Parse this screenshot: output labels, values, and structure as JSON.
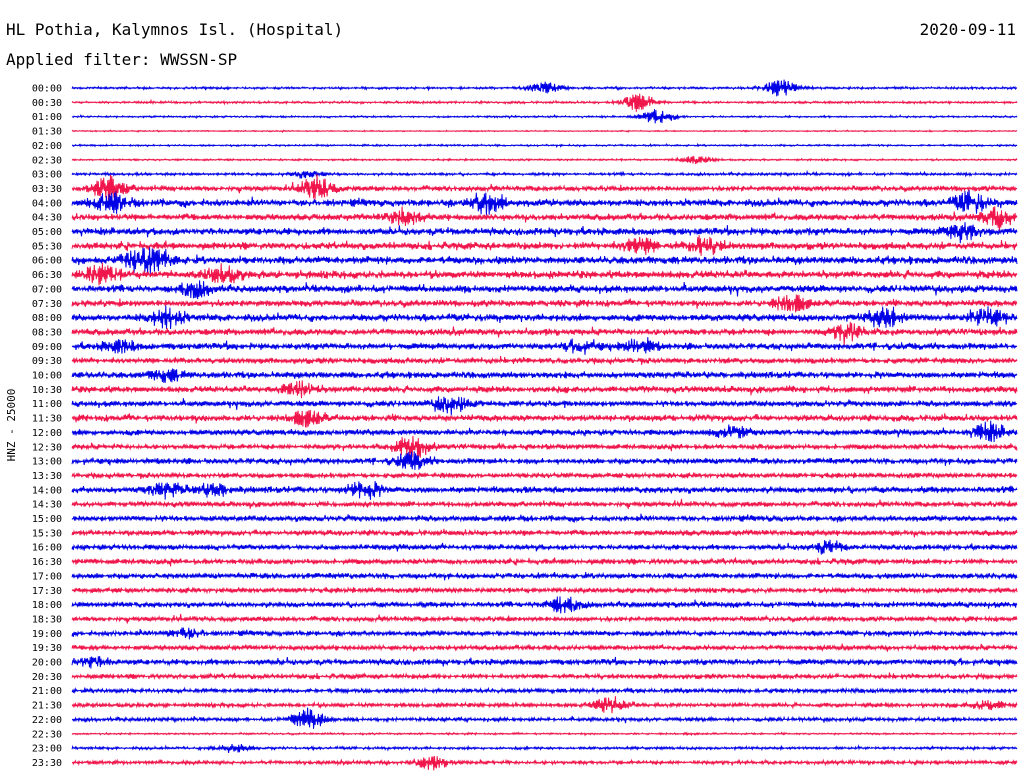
{
  "header": {
    "station": "HL Pothia, Kalymnos Isl. (Hospital)",
    "date": "2020-09-11",
    "filter": "Applied filter: WWSSN-SP"
  },
  "chart_data": {
    "type": "line",
    "title": "HL Pothia, Kalymnos Isl. (Hospital)",
    "subtitle": "Applied filter: WWSSN-SP",
    "ylabel": "HNZ - 25000",
    "series_colors": [
      "#0000e6",
      "#f0154a"
    ],
    "rows": [
      {
        "label": "00:00",
        "color": "#0000e6",
        "amplitude": 0.15,
        "events": [
          {
            "t": 0.5,
            "amp": 0.6
          },
          {
            "t": 0.75,
            "amp": 0.9
          }
        ]
      },
      {
        "label": "00:30",
        "color": "#f0154a",
        "amplitude": 0.15,
        "events": [
          {
            "t": 0.6,
            "amp": 1.0
          }
        ]
      },
      {
        "label": "01:00",
        "color": "#0000e6",
        "amplitude": 0.12,
        "events": [
          {
            "t": 0.62,
            "amp": 0.8
          }
        ]
      },
      {
        "label": "01:30",
        "color": "#f0154a",
        "amplitude": 0.08,
        "events": []
      },
      {
        "label": "02:00",
        "color": "#0000e6",
        "amplitude": 0.12,
        "events": []
      },
      {
        "label": "02:30",
        "color": "#f0154a",
        "amplitude": 0.12,
        "events": [
          {
            "t": 0.66,
            "amp": 0.4
          }
        ]
      },
      {
        "label": "03:00",
        "color": "#0000e6",
        "amplitude": 0.18,
        "events": [
          {
            "t": 0.25,
            "amp": 0.4
          }
        ]
      },
      {
        "label": "03:30",
        "color": "#f0154a",
        "amplitude": 0.35,
        "events": [
          {
            "t": 0.04,
            "amp": 1.3
          },
          {
            "t": 0.26,
            "amp": 1.3
          }
        ]
      },
      {
        "label": "04:00",
        "color": "#0000e6",
        "amplitude": 0.5,
        "events": [
          {
            "t": 0.04,
            "amp": 1.0
          },
          {
            "t": 0.44,
            "amp": 1.2
          },
          {
            "t": 0.95,
            "amp": 1.0
          }
        ]
      },
      {
        "label": "04:30",
        "color": "#f0154a",
        "amplitude": 0.45,
        "events": [
          {
            "t": 0.35,
            "amp": 0.8
          },
          {
            "t": 0.98,
            "amp": 1.0
          }
        ]
      },
      {
        "label": "05:00",
        "color": "#0000e6",
        "amplitude": 0.5,
        "events": [
          {
            "t": 0.94,
            "amp": 0.9
          }
        ]
      },
      {
        "label": "05:30",
        "color": "#f0154a",
        "amplitude": 0.5,
        "events": [
          {
            "t": 0.6,
            "amp": 0.9
          },
          {
            "t": 0.67,
            "amp": 0.9
          }
        ]
      },
      {
        "label": "06:00",
        "color": "#0000e6",
        "amplitude": 0.55,
        "events": [
          {
            "t": 0.07,
            "amp": 0.9
          },
          {
            "t": 0.09,
            "amp": 0.9
          }
        ]
      },
      {
        "label": "06:30",
        "color": "#f0154a",
        "amplitude": 0.55,
        "events": [
          {
            "t": 0.03,
            "amp": 1.0
          },
          {
            "t": 0.16,
            "amp": 0.8
          }
        ]
      },
      {
        "label": "07:00",
        "color": "#0000e6",
        "amplitude": 0.5,
        "events": [
          {
            "t": 0.13,
            "amp": 0.8
          }
        ]
      },
      {
        "label": "07:30",
        "color": "#f0154a",
        "amplitude": 0.45,
        "events": [
          {
            "t": 0.76,
            "amp": 0.8
          }
        ]
      },
      {
        "label": "08:00",
        "color": "#0000e6",
        "amplitude": 0.5,
        "events": [
          {
            "t": 0.1,
            "amp": 1.0
          },
          {
            "t": 0.86,
            "amp": 1.0
          },
          {
            "t": 0.97,
            "amp": 1.0
          }
        ]
      },
      {
        "label": "08:30",
        "color": "#f0154a",
        "amplitude": 0.45,
        "events": [
          {
            "t": 0.82,
            "amp": 0.9
          }
        ]
      },
      {
        "label": "09:00",
        "color": "#0000e6",
        "amplitude": 0.45,
        "events": [
          {
            "t": 0.05,
            "amp": 0.6
          },
          {
            "t": 0.54,
            "amp": 0.6
          },
          {
            "t": 0.6,
            "amp": 0.8
          }
        ]
      },
      {
        "label": "09:30",
        "color": "#f0154a",
        "amplitude": 0.4,
        "events": []
      },
      {
        "label": "10:00",
        "color": "#0000e6",
        "amplitude": 0.45,
        "events": [
          {
            "t": 0.1,
            "amp": 0.6
          }
        ]
      },
      {
        "label": "10:30",
        "color": "#f0154a",
        "amplitude": 0.45,
        "events": [
          {
            "t": 0.24,
            "amp": 0.8
          }
        ]
      },
      {
        "label": "11:00",
        "color": "#0000e6",
        "amplitude": 0.4,
        "events": [
          {
            "t": 0.4,
            "amp": 0.9
          }
        ]
      },
      {
        "label": "11:30",
        "color": "#f0154a",
        "amplitude": 0.45,
        "events": [
          {
            "t": 0.25,
            "amp": 0.7
          }
        ]
      },
      {
        "label": "12:00",
        "color": "#0000e6",
        "amplitude": 0.4,
        "events": [
          {
            "t": 0.7,
            "amp": 0.6
          },
          {
            "t": 0.97,
            "amp": 1.0
          }
        ]
      },
      {
        "label": "12:30",
        "color": "#f0154a",
        "amplitude": 0.35,
        "events": [
          {
            "t": 0.36,
            "amp": 1.3
          }
        ]
      },
      {
        "label": "13:00",
        "color": "#0000e6",
        "amplitude": 0.4,
        "events": [
          {
            "t": 0.36,
            "amp": 0.8
          }
        ]
      },
      {
        "label": "13:30",
        "color": "#f0154a",
        "amplitude": 0.35,
        "events": []
      },
      {
        "label": "14:00",
        "color": "#0000e6",
        "amplitude": 0.45,
        "events": [
          {
            "t": 0.1,
            "amp": 0.7
          },
          {
            "t": 0.15,
            "amp": 0.6
          },
          {
            "t": 0.31,
            "amp": 0.9
          }
        ]
      },
      {
        "label": "14:30",
        "color": "#f0154a",
        "amplitude": 0.35,
        "events": []
      },
      {
        "label": "15:00",
        "color": "#0000e6",
        "amplitude": 0.4,
        "events": []
      },
      {
        "label": "15:30",
        "color": "#f0154a",
        "amplitude": 0.38,
        "events": []
      },
      {
        "label": "16:00",
        "color": "#0000e6",
        "amplitude": 0.35,
        "events": [
          {
            "t": 0.8,
            "amp": 0.6
          }
        ]
      },
      {
        "label": "16:30",
        "color": "#f0154a",
        "amplitude": 0.38,
        "events": []
      },
      {
        "label": "17:00",
        "color": "#0000e6",
        "amplitude": 0.38,
        "events": []
      },
      {
        "label": "17:30",
        "color": "#f0154a",
        "amplitude": 0.35,
        "events": []
      },
      {
        "label": "18:00",
        "color": "#0000e6",
        "amplitude": 0.38,
        "events": [
          {
            "t": 0.52,
            "amp": 0.9
          }
        ]
      },
      {
        "label": "18:30",
        "color": "#f0154a",
        "amplitude": 0.33,
        "events": []
      },
      {
        "label": "19:00",
        "color": "#0000e6",
        "amplitude": 0.35,
        "events": [
          {
            "t": 0.12,
            "amp": 0.5
          }
        ]
      },
      {
        "label": "19:30",
        "color": "#f0154a",
        "amplitude": 0.33,
        "events": []
      },
      {
        "label": "20:00",
        "color": "#0000e6",
        "amplitude": 0.4,
        "events": [
          {
            "t": 0.02,
            "amp": 0.6
          }
        ]
      },
      {
        "label": "20:30",
        "color": "#f0154a",
        "amplitude": 0.33,
        "events": []
      },
      {
        "label": "21:00",
        "color": "#0000e6",
        "amplitude": 0.3,
        "events": []
      },
      {
        "label": "21:30",
        "color": "#f0154a",
        "amplitude": 0.3,
        "events": [
          {
            "t": 0.57,
            "amp": 0.8
          },
          {
            "t": 0.97,
            "amp": 0.5
          }
        ]
      },
      {
        "label": "22:00",
        "color": "#0000e6",
        "amplitude": 0.25,
        "events": [
          {
            "t": 0.25,
            "amp": 1.1
          }
        ]
      },
      {
        "label": "22:30",
        "color": "#f0154a",
        "amplitude": 0.12,
        "events": []
      },
      {
        "label": "23:00",
        "color": "#0000e6",
        "amplitude": 0.18,
        "events": [
          {
            "t": 0.17,
            "amp": 0.5
          }
        ]
      },
      {
        "label": "23:30",
        "color": "#f0154a",
        "amplitude": 0.25,
        "events": [
          {
            "t": 0.38,
            "amp": 0.7
          }
        ]
      }
    ]
  }
}
